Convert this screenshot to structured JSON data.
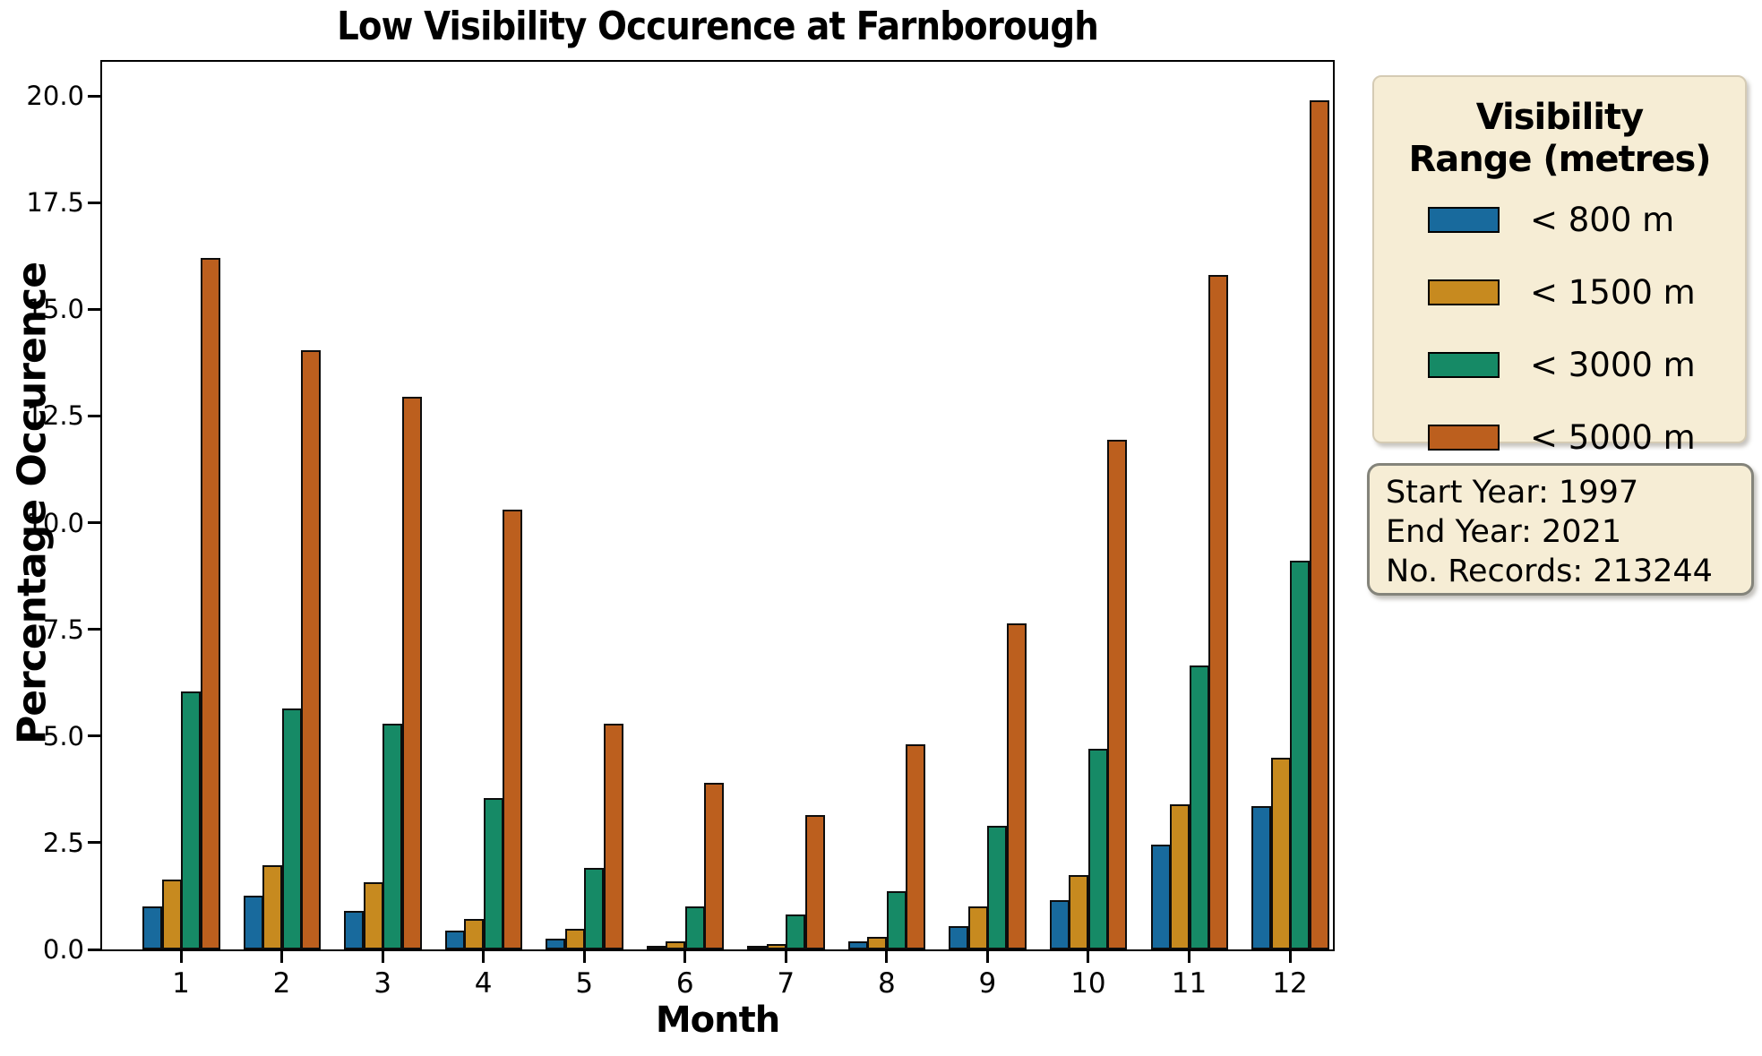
{
  "title": "Low Visibility Occurence at Farnborough",
  "axes": {
    "xlabel": "Month",
    "ylabel": "Percentage Occurence",
    "ytick_labels": [
      "0.0",
      "2.5",
      "5.0",
      "7.5",
      "10.0",
      "12.5",
      "15.0",
      "17.5",
      "20.0"
    ],
    "xtick_labels": [
      "1",
      "2",
      "3",
      "4",
      "5",
      "6",
      "7",
      "8",
      "9",
      "10",
      "11",
      "12"
    ]
  },
  "legend": {
    "title_line1": "Visibility",
    "title_line2": "Range (metres)",
    "entries": [
      {
        "label": "< 800 m",
        "color": "#186a9d"
      },
      {
        "label": "< 1500 m",
        "color": "#c78a1f"
      },
      {
        "label": "< 3000 m",
        "color": "#168a66"
      },
      {
        "label": "< 5000 m",
        "color": "#bc5f1e"
      }
    ]
  },
  "info_box": {
    "lines": [
      "Start Year: 1997",
      "End Year: 2021",
      "No. Records: 213244"
    ]
  },
  "colors": {
    "box_background": "#f6edd5",
    "legend_border": "#d5cbb4",
    "info_border": "#84847b",
    "bar_edge": "#0d0d0d",
    "series_blue": "#186a9d",
    "series_gold": "#c78a1f",
    "series_green": "#168a66",
    "series_orange": "#bc5f1e"
  },
  "chart_data": {
    "type": "bar",
    "title": "Low Visibility Occurence at Farnborough",
    "xlabel": "Month",
    "ylabel": "Percentage Occurence",
    "categories": [
      1,
      2,
      3,
      4,
      5,
      6,
      7,
      8,
      9,
      10,
      11,
      12
    ],
    "series": [
      {
        "name": "< 800 m",
        "color": "#186a9d",
        "values": [
          1.0,
          1.25,
          0.9,
          0.45,
          0.25,
          0.07,
          0.04,
          0.18,
          0.55,
          1.15,
          2.45,
          3.35
        ]
      },
      {
        "name": "< 1500 m",
        "color": "#c78a1f",
        "values": [
          1.63,
          1.97,
          1.57,
          0.72,
          0.49,
          0.18,
          0.12,
          0.29,
          1.0,
          1.75,
          3.4,
          4.5
        ]
      },
      {
        "name": "< 3000 m",
        "color": "#168a66",
        "values": [
          6.05,
          5.65,
          5.3,
          3.55,
          1.9,
          1.0,
          0.82,
          1.36,
          2.9,
          4.7,
          6.65,
          9.1
        ]
      },
      {
        "name": "< 5000 m",
        "color": "#bc5f1e",
        "values": [
          16.2,
          14.05,
          12.95,
          10.3,
          5.3,
          3.9,
          3.15,
          4.8,
          7.65,
          11.95,
          15.8,
          19.9
        ]
      }
    ],
    "ylim": [
      0,
      20.8
    ],
    "yticks": [
      0.0,
      2.5,
      5.0,
      7.5,
      10.0,
      12.5,
      15.0,
      17.5,
      20.0
    ],
    "grid": false,
    "legend_title": "Visibility Range (metres)",
    "legend_position": "outside-right",
    "annotations": [
      "Start Year: 1997",
      "End Year: 2021",
      "No. Records: 213244"
    ]
  }
}
